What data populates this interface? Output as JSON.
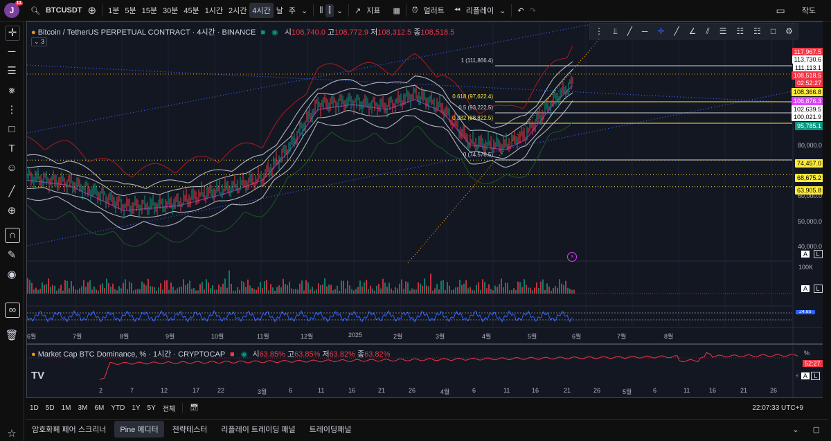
{
  "header": {
    "avatar_letter": "J",
    "avatar_badge": "11",
    "symbol": "BTCUSDT",
    "intervals": [
      "1분",
      "5분",
      "15분",
      "30분",
      "45분",
      "1시간",
      "2시간",
      "4시간",
      "날",
      "주"
    ],
    "active_interval": "4시간",
    "indicators_label": "지표",
    "alert_label": "얼러트",
    "replay_label": "리플레이",
    "layout_label": "작도"
  },
  "main_chart": {
    "title": "Bitcoin / TetherUS PERPETUAL CONTRACT · 4시간 · BINANCE",
    "ohlc": {
      "open_label": "시",
      "open": "108,740.0",
      "high_label": "고",
      "high": "108,772.9",
      "low_label": "저",
      "low": "108,312.5",
      "close_label": "종",
      "close": "108,518.5"
    },
    "collapsed_count": "3",
    "fib_levels": [
      {
        "label": "1 (111,866.4)",
        "price": 111866.4
      },
      {
        "label": "0.618 (97,622.4)",
        "price": 97622.4
      },
      {
        "label": "0.5 (93,222.5)",
        "price": 93222.5
      },
      {
        "label": "0.382 (88,822.5)",
        "price": 88822.5
      },
      {
        "label": "0 (74,578.5)",
        "price": 74578.5
      }
    ],
    "price_axis_ticks": [
      "80,000.0",
      "60,000.0",
      "50,000.0",
      "40,000.0"
    ],
    "price_tags": [
      {
        "text": "117,967.5",
        "bg": "#f23645",
        "fg": "#ffffff"
      },
      {
        "text": "113,730.6",
        "bg": "#ffffff",
        "fg": "#000000"
      },
      {
        "text": "111,113.1",
        "bg": "#ffffff",
        "fg": "#000000"
      },
      {
        "text": "108,518.5",
        "bg": "#f23645",
        "fg": "#ffffff"
      },
      {
        "text": "02:52:27",
        "bg": "#f23645",
        "fg": "#ffffff"
      },
      {
        "text": "108,366.8",
        "bg": "#ffeb3b",
        "fg": "#000000"
      },
      {
        "text": "106,876.3",
        "bg": "#e040fb",
        "fg": "#ffffff"
      },
      {
        "text": "102,639.5",
        "bg": "#ffffff",
        "fg": "#000000"
      },
      {
        "text": "100,021.9",
        "bg": "#ffffff",
        "fg": "#000000"
      },
      {
        "text": "95,785.1",
        "bg": "#089981",
        "fg": "#ffffff"
      },
      {
        "text": "74,457.0",
        "bg": "#ffeb3b",
        "fg": "#000000"
      },
      {
        "text": "68,675.2",
        "bg": "#ffeb3b",
        "fg": "#000000"
      },
      {
        "text": "63,905.8",
        "bg": "#ffeb3b",
        "fg": "#000000"
      }
    ],
    "volume_axis_label": "100K",
    "osc_tag": "24.85",
    "time_axis": [
      "6월",
      "7월",
      "8월",
      "9월",
      "10월",
      "11월",
      "12월",
      "2025",
      "2월",
      "3월",
      "4월",
      "5월",
      "6월",
      "7월",
      "8월"
    ]
  },
  "second_chart": {
    "title": "Market Cap BTC Dominance, % · 1시간 · CRYPTOCAP",
    "ohlc": {
      "open_label": "시",
      "open": "63.85%",
      "high_label": "고",
      "high": "63.85%",
      "low_label": "저",
      "low": "63.82%",
      "close_label": "종",
      "close": "63.82%"
    },
    "scale_label": "%",
    "countdown": "52:27",
    "time_axis": [
      "2",
      "7",
      "12",
      "17",
      "22",
      "3월",
      "6",
      "11",
      "16",
      "21",
      "26",
      "4월",
      "6",
      "11",
      "16",
      "21",
      "26",
      "5월",
      "6",
      "11",
      "16",
      "21",
      "26"
    ]
  },
  "ranges": [
    "1D",
    "5D",
    "1M",
    "3M",
    "6M",
    "YTD",
    "1Y",
    "5Y",
    "전체"
  ],
  "clock": "22:07:33 UTC+9",
  "bottom_tabs": [
    "암호화폐 페어 스크리너",
    "Pine 에디터",
    "전략테스터",
    "리플레이 트레이딩 패널",
    "트레이딩패널"
  ],
  "active_bottom_tab": "Pine 에디터",
  "colors": {
    "accent": "#2962ff",
    "up": "#089981",
    "down": "#f23645",
    "fib": "#ffeb3b"
  }
}
